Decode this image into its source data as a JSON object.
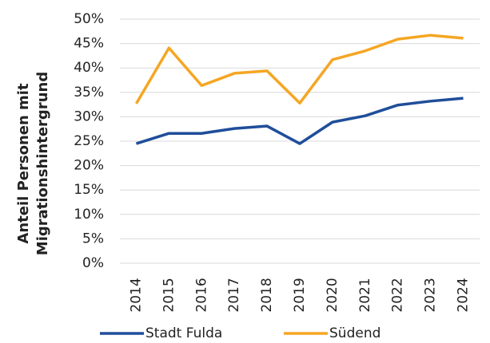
{
  "chart_data": {
    "type": "line",
    "ylabel": [
      "Anteil Personen mit",
      "Migrationshintergrund"
    ],
    "categories": [
      "2014",
      "2015",
      "2016",
      "2017",
      "2018",
      "2019",
      "2020",
      "2021",
      "2022",
      "2023",
      "2024"
    ],
    "series": [
      {
        "name": "Stadt Fulda",
        "color": "#1f4e9a",
        "values": [
          24.5,
          26.6,
          26.6,
          27.6,
          28.1,
          24.5,
          28.9,
          30.2,
          32.4,
          33.2,
          33.8
        ]
      },
      {
        "name": "Südend",
        "color": "#f5a623",
        "values": [
          32.7,
          44.1,
          36.4,
          38.9,
          39.4,
          32.8,
          41.7,
          43.5,
          45.9,
          46.7,
          46.1
        ]
      }
    ],
    "ylim": [
      0,
      50
    ],
    "yticks": [
      {
        "value": 0,
        "label": "0%"
      },
      {
        "value": 5,
        "label": "5%"
      },
      {
        "value": 10,
        "label": "10%"
      },
      {
        "value": 15,
        "label": "15%"
      },
      {
        "value": 20,
        "label": "20%"
      },
      {
        "value": 25,
        "label": "25%"
      },
      {
        "value": 30,
        "label": "30%"
      },
      {
        "value": 35,
        "label": "35%"
      },
      {
        "value": 40,
        "label": "40%"
      },
      {
        "value": 45,
        "label": "45%"
      },
      {
        "value": 50,
        "label": "50%"
      }
    ],
    "grid": true
  }
}
